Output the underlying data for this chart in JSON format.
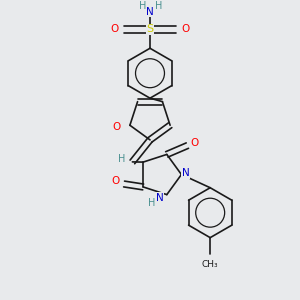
{
  "bg_color": "#e8eaec",
  "bond_color": "#1a1a1a",
  "atom_colors": {
    "O": "#ff0000",
    "N": "#0000cc",
    "S": "#cccc00",
    "H": "#4a9090",
    "C": "#1a1a1a"
  }
}
